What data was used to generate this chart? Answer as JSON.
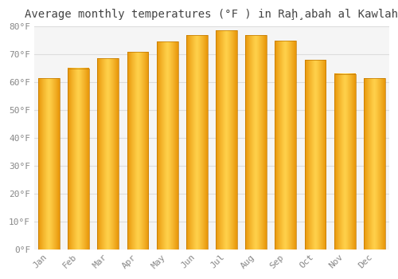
{
  "title": "Average monthly temperatures (°F ) in Raḩ̧abah al Kawlah",
  "months": [
    "Jan",
    "Feb",
    "Mar",
    "Apr",
    "May",
    "Jun",
    "Jul",
    "Aug",
    "Sep",
    "Oct",
    "Nov",
    "Dec"
  ],
  "values": [
    61.5,
    65.0,
    68.5,
    71.0,
    74.5,
    77.0,
    78.5,
    77.0,
    75.0,
    68.0,
    63.0,
    61.5
  ],
  "bar_color_edge": "#E8960A",
  "bar_color_mid": "#FFD04A",
  "ylim_min": 0,
  "ylim_max": 80,
  "ytick_step": 10,
  "background_color": "#ffffff",
  "plot_bg_color": "#f5f5f5",
  "grid_color": "#dddddd",
  "title_fontsize": 10,
  "tick_fontsize": 8,
  "tick_color": "#888888"
}
